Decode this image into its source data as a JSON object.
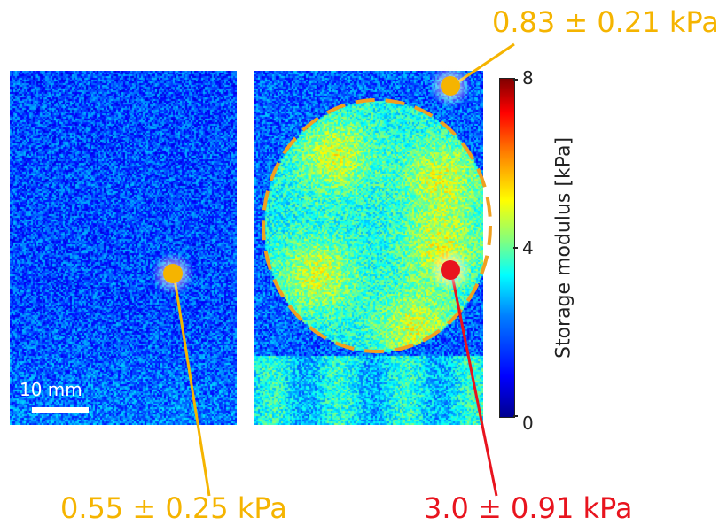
{
  "scale_bar": {
    "label": "10 mm"
  },
  "colorbar": {
    "title": "Storage modulus [kPa]",
    "ticks": [
      "8",
      "4",
      "0"
    ],
    "min": 0,
    "max": 8
  },
  "annotations": {
    "top_right": "0.83 ± 0.21 kPa",
    "bottom_left": "0.55 ± 0.25 kPa",
    "bottom_right": "3.0 ± 0.91 kPa"
  },
  "colors": {
    "marker_yellow": "#f5b400",
    "marker_red": "#e8141e",
    "dashed_circle": "#f0a020"
  }
}
